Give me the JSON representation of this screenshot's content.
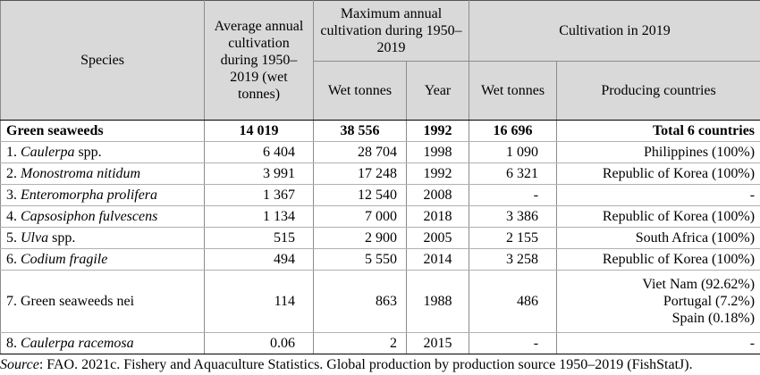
{
  "headers": {
    "species": "Species",
    "avg": "Average annual cultivation during 1950–2019 (wet tonnes)",
    "max_group": "Maximum annual cultivation during 1950–2019",
    "cult_group": "Cultivation in 2019",
    "wet_tonnes": "Wet tonnes",
    "year": "Year",
    "wet_tonnes_2019": "Wet tonnes",
    "countries": "Producing countries"
  },
  "total_row": {
    "species": "Green seaweeds",
    "avg": "14 019",
    "max_wet": "38 556",
    "year": "1992",
    "wet2019": "16 696",
    "countries": "Total 6 countries"
  },
  "rows": [
    {
      "num": "1. ",
      "name": "Caulerpa",
      "suffix": " spp.",
      "avg": "6 404",
      "max_wet": "28 704",
      "year": "1998",
      "wet2019": "1 090",
      "countries": [
        "Philippines (100%)"
      ]
    },
    {
      "num": "2. ",
      "name": "Monostroma nitidum",
      "suffix": "",
      "avg": "3 991",
      "max_wet": "17 248",
      "year": "1992",
      "wet2019": "6 321",
      "countries": [
        "Republic of Korea (100%)"
      ]
    },
    {
      "num": "3. ",
      "name": "Enteromorpha prolifera",
      "suffix": "",
      "avg": "1 367",
      "max_wet": "12 540",
      "year": "2008",
      "wet2019": "-",
      "countries": [
        "-"
      ]
    },
    {
      "num": "4. ",
      "name": "Capsosiphon fulvescens",
      "suffix": "",
      "avg": "1 134",
      "max_wet": "7 000",
      "year": "2018",
      "wet2019": "3 386",
      "countries": [
        "Republic of Korea (100%)"
      ]
    },
    {
      "num": "5. ",
      "name": "Ulva",
      "suffix": " spp.",
      "avg": "515",
      "max_wet": "2 900",
      "year": "2005",
      "wet2019": "2 155",
      "countries": [
        "South Africa (100%)"
      ]
    },
    {
      "num": "6. ",
      "name": "Codium fragile",
      "suffix": "",
      "avg": "494",
      "max_wet": "5 550",
      "year": "2014",
      "wet2019": "3 258",
      "countries": [
        "Republic of Korea (100%)"
      ]
    },
    {
      "num": "7. ",
      "name": "",
      "suffix": "Green seaweeds nei",
      "avg": "114",
      "max_wet": "863",
      "year": "1988",
      "wet2019": "486",
      "countries": [
        "Viet Nam (92.62%)",
        "Portugal (7.2%)",
        "Spain (0.18%)"
      ]
    },
    {
      "num": "8. ",
      "name": "Caulerpa racemosa",
      "suffix": "",
      "avg": "0.06",
      "max_wet": "2",
      "year": "2015",
      "wet2019": "-",
      "countries": [
        "-"
      ]
    }
  ],
  "source": {
    "label": "Source",
    "text": ": FAO. 2021c. Fishery and Aquaculture Statistics. Global production by production source 1950–2019 (FishStatJ)."
  }
}
